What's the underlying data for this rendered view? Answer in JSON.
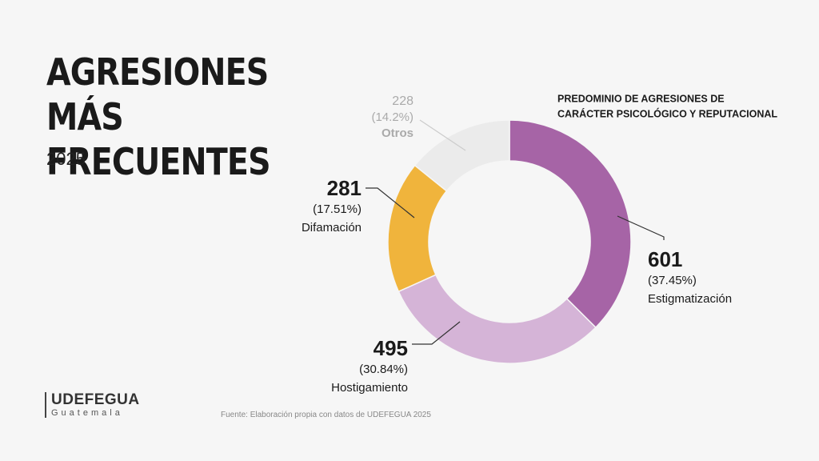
{
  "title": "AGRESIONES MÁS FRECUENTES",
  "subtitle": "2025",
  "logo": {
    "name": "UDEFEGUA",
    "place": "Guatemala"
  },
  "source": "Fuente: Elaboración propia con datos de UDEFEGUA 2025",
  "chart_data": {
    "type": "donut",
    "annotation": "PREDOMINIO DE AGRESIONES DE CARÁCTER PSICOLÓGICO Y REPUTACIONAL",
    "categories": [
      "Estigmatización",
      "Hostigamiento",
      "Difamación",
      "Otros"
    ],
    "values": [
      601,
      495,
      281,
      228
    ],
    "percent_labels": [
      "(37.45%)",
      "(30.84%)",
      "(17.51%)",
      "(14.2%)"
    ],
    "colors": [
      "#a664a6",
      "#d5b4d7",
      "#f0b43c",
      "#ebebeb"
    ]
  }
}
